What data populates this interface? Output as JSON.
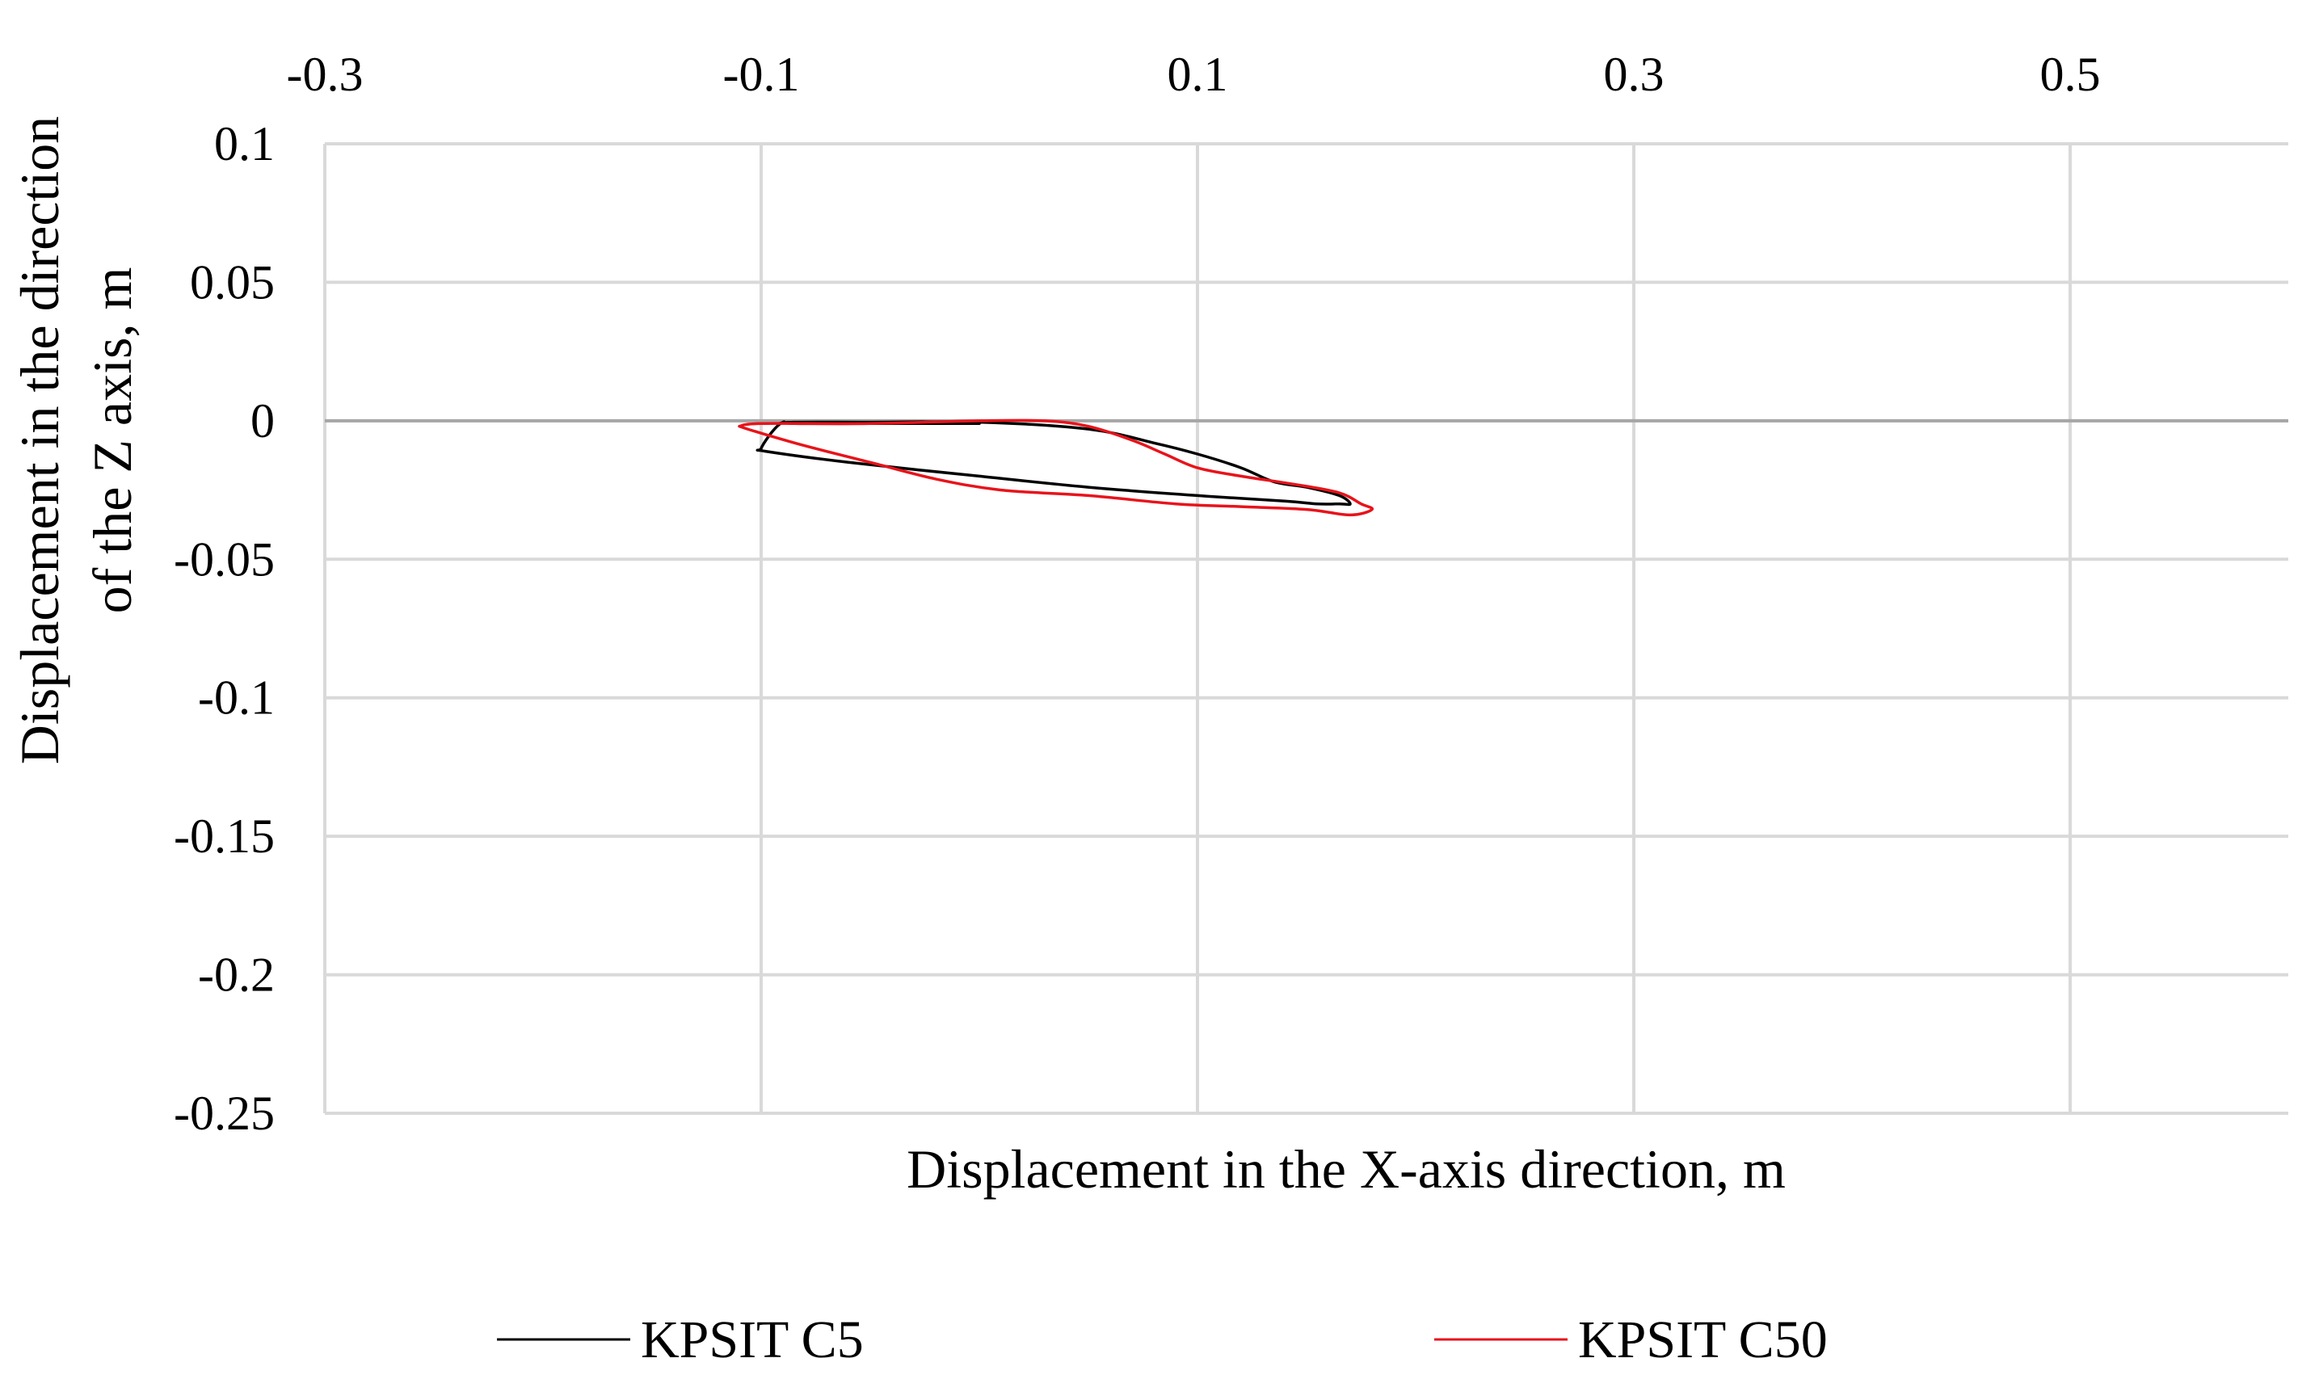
{
  "chart_data": {
    "type": "line",
    "title": "",
    "xlabel": "Displacement in the X-axis direction, m",
    "ylabel_lines": [
      "Displacement in the direction",
      "of the Z axis, m"
    ],
    "xlim": [
      -0.3,
      0.6
    ],
    "ylim": [
      -0.25,
      0.1
    ],
    "x_ticks": [
      -0.3,
      -0.1,
      0.1,
      0.3,
      0.5
    ],
    "x_tick_labels": [
      "-0.3",
      "-0.1",
      "0.1",
      "0.3",
      "0.5"
    ],
    "x_tick_position": "top",
    "y_ticks": [
      0.1,
      0.05,
      0,
      -0.05,
      -0.1,
      -0.15,
      -0.2,
      -0.25
    ],
    "y_tick_labels": [
      "0.1",
      "0.05",
      "0",
      "-0.05",
      "-0.1",
      "-0.15",
      "-0.2",
      "-0.25"
    ],
    "grid": true,
    "legend_position": "bottom",
    "series": [
      {
        "name": "KPSIT C5",
        "color": "#000000",
        "x": [
          0.0,
          -0.05,
          -0.085,
          -0.09,
          -0.095,
          -0.1,
          -0.098,
          -0.06,
          0.0,
          0.05,
          0.1,
          0.14,
          0.155,
          0.165,
          0.17,
          0.165,
          0.15,
          0.135,
          0.12,
          0.1,
          0.08,
          0.05,
          0.0,
          -0.05,
          -0.085,
          -0.092
        ],
        "y": [
          -0.001,
          -0.001,
          -0.001,
          -0.0005,
          -0.004,
          -0.01,
          -0.011,
          -0.015,
          -0.02,
          -0.024,
          -0.027,
          -0.029,
          -0.03,
          -0.03,
          -0.03,
          -0.027,
          -0.024,
          -0.022,
          -0.017,
          -0.012,
          -0.008,
          -0.003,
          -0.0005,
          -0.0005,
          -0.0005,
          -0.001
        ]
      },
      {
        "name": "KPSIT C50",
        "color": "#e8131b",
        "x": [
          -0.11,
          -0.102,
          -0.08,
          -0.05,
          -0.02,
          0.01,
          0.05,
          0.09,
          0.12,
          0.15,
          0.17,
          0.18,
          0.175,
          0.165,
          0.145,
          0.12,
          0.1,
          0.085,
          0.07,
          0.05,
          0.03,
          0.0,
          -0.05,
          -0.1,
          -0.11
        ],
        "y": [
          -0.002,
          -0.004,
          -0.009,
          -0.015,
          -0.021,
          -0.025,
          -0.027,
          -0.03,
          -0.031,
          -0.032,
          -0.034,
          -0.032,
          -0.03,
          -0.026,
          -0.023,
          -0.02,
          -0.017,
          -0.012,
          -0.007,
          -0.002,
          0.0,
          0.0,
          -0.001,
          -0.001,
          -0.002
        ]
      }
    ]
  }
}
